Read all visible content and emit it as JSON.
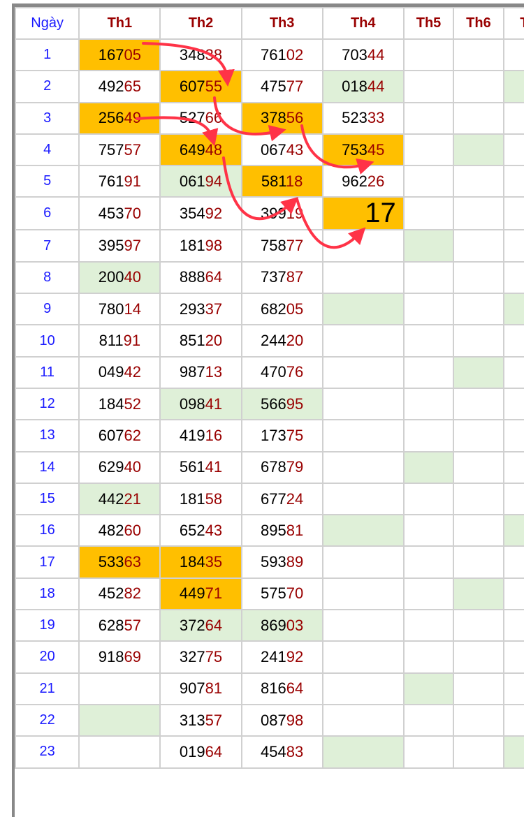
{
  "colors": {
    "highlight": "#ffbf00",
    "green": "#dff0d8",
    "tail": "#990000",
    "day": "#1a1aff",
    "arrow": "#ff3347"
  },
  "headers": [
    "Ngày",
    "Th1",
    "Th2",
    "Th3",
    "Th4",
    "Th5",
    "Th6",
    "T"
  ],
  "rows": [
    {
      "day": "1",
      "cells": [
        "16705",
        "34838",
        "76102",
        "70344",
        "",
        "",
        ""
      ]
    },
    {
      "day": "2",
      "cells": [
        "49265",
        "60755",
        "47577",
        "01844",
        "",
        "",
        ""
      ]
    },
    {
      "day": "3",
      "cells": [
        "25649",
        "52766",
        "37856",
        "52333",
        "",
        "",
        ""
      ]
    },
    {
      "day": "4",
      "cells": [
        "75757",
        "64948",
        "06743",
        "75345",
        "",
        "",
        ""
      ]
    },
    {
      "day": "5",
      "cells": [
        "76191",
        "06194",
        "58118",
        "96226",
        "",
        "",
        ""
      ]
    },
    {
      "day": "6",
      "cells": [
        "45370",
        "35492",
        "39919",
        "17",
        "",
        "",
        ""
      ]
    },
    {
      "day": "7",
      "cells": [
        "39597",
        "18198",
        "75877",
        "",
        "",
        "",
        ""
      ]
    },
    {
      "day": "8",
      "cells": [
        "20040",
        "88864",
        "73787",
        "",
        "",
        "",
        ""
      ]
    },
    {
      "day": "9",
      "cells": [
        "78014",
        "29337",
        "68205",
        "",
        "",
        "",
        ""
      ]
    },
    {
      "day": "10",
      "cells": [
        "81191",
        "85120",
        "24420",
        "",
        "",
        "",
        ""
      ]
    },
    {
      "day": "11",
      "cells": [
        "04942",
        "98713",
        "47076",
        "",
        "",
        "",
        ""
      ]
    },
    {
      "day": "12",
      "cells": [
        "18452",
        "09841",
        "56695",
        "",
        "",
        "",
        ""
      ]
    },
    {
      "day": "13",
      "cells": [
        "60762",
        "41916",
        "17375",
        "",
        "",
        "",
        ""
      ]
    },
    {
      "day": "14",
      "cells": [
        "62940",
        "56141",
        "67879",
        "",
        "",
        "",
        ""
      ]
    },
    {
      "day": "15",
      "cells": [
        "44221",
        "18158",
        "67724",
        "",
        "",
        "",
        ""
      ]
    },
    {
      "day": "16",
      "cells": [
        "48260",
        "65243",
        "89581",
        "",
        "",
        "",
        ""
      ]
    },
    {
      "day": "17",
      "cells": [
        "53363",
        "18435",
        "59389",
        "",
        "",
        "",
        ""
      ]
    },
    {
      "day": "18",
      "cells": [
        "45282",
        "44971",
        "57570",
        "",
        "",
        "",
        ""
      ]
    },
    {
      "day": "19",
      "cells": [
        "62857",
        "37264",
        "86903",
        "",
        "",
        "",
        ""
      ]
    },
    {
      "day": "20",
      "cells": [
        "91869",
        "32775",
        "24192",
        "",
        "",
        "",
        ""
      ]
    },
    {
      "day": "21",
      "cells": [
        "",
        "90781",
        "81664",
        "",
        "",
        "",
        ""
      ]
    },
    {
      "day": "22",
      "cells": [
        "",
        "31357",
        "08798",
        "",
        "",
        "",
        ""
      ]
    },
    {
      "day": "23",
      "cells": [
        "",
        "01964",
        "45483",
        "",
        "",
        "",
        ""
      ]
    }
  ],
  "highlighted": [
    [
      1,
      0
    ],
    [
      2,
      1
    ],
    [
      3,
      0
    ],
    [
      3,
      2
    ],
    [
      4,
      1
    ],
    [
      4,
      3
    ],
    [
      5,
      2
    ],
    [
      6,
      3
    ],
    [
      17,
      0
    ],
    [
      17,
      1
    ],
    [
      18,
      1
    ]
  ],
  "green": [
    [
      8,
      0
    ],
    [
      15,
      0
    ],
    [
      22,
      0
    ],
    [
      5,
      1
    ],
    [
      12,
      1
    ],
    [
      19,
      1
    ],
    [
      12,
      2
    ],
    [
      19,
      2
    ],
    [
      2,
      3
    ],
    [
      9,
      3
    ],
    [
      16,
      3
    ],
    [
      23,
      3
    ],
    [
      7,
      4
    ],
    [
      14,
      4
    ],
    [
      21,
      4
    ],
    [
      4,
      5
    ],
    [
      11,
      5
    ],
    [
      18,
      5
    ],
    [
      2,
      6
    ],
    [
      9,
      6
    ],
    [
      16,
      6
    ],
    [
      23,
      6
    ]
  ],
  "big_cells": [
    [
      6,
      3
    ]
  ]
}
